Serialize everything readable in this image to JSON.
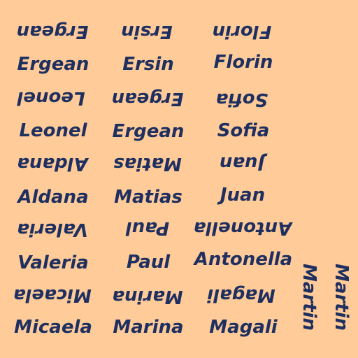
{
  "words": {
    "r1": [
      "Ergean",
      "Ersin",
      "Florin"
    ],
    "r2": [
      "Ergean",
      "Ersin",
      "Florin"
    ],
    "r3": [
      "Leonel",
      "Ergean",
      "Sofia"
    ],
    "r4": [
      "Leonel",
      "Ergean",
      "Sofia"
    ],
    "r5": [
      "Aldana",
      "Matias",
      "Juan"
    ],
    "r6": [
      "Aldana",
      "Matias",
      "Juan"
    ],
    "r7": [
      "Valeria",
      "Paul",
      "Antonella"
    ],
    "r8": [
      "Valeria",
      "Paul",
      "Antonella"
    ],
    "r9": [
      "Micaela",
      "Marina",
      "Magali"
    ],
    "r10": [
      "Micaela",
      "Marina",
      "Magali"
    ],
    "side": [
      "Martin",
      "Martin"
    ]
  },
  "colors": {
    "background": "#FFCC99",
    "text": "#1F3060"
  }
}
